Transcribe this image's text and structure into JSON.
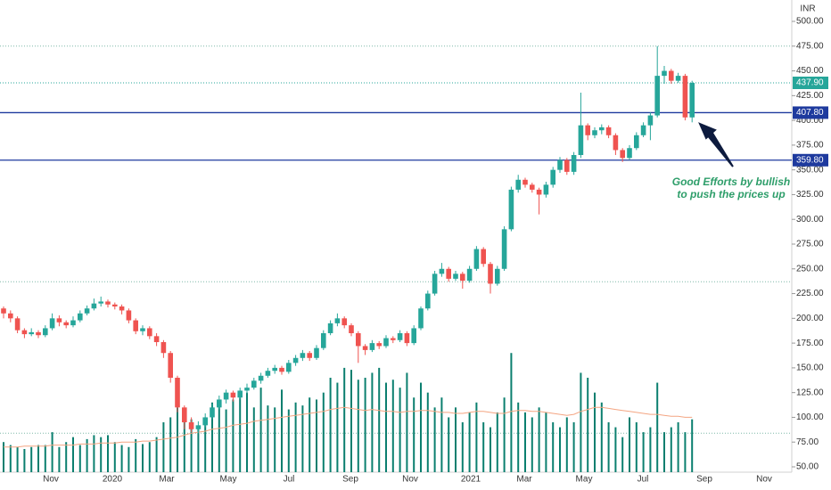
{
  "chart_data": {
    "type": "candlestick",
    "currency": "INR",
    "x_labels": [
      "Nov",
      "2020",
      "Mar",
      "May",
      "Jul",
      "Sep",
      "Nov",
      "2021",
      "Mar",
      "May",
      "Jul",
      "Sep",
      "Nov"
    ],
    "ylim": [
      50,
      500
    ],
    "yticks": [
      {
        "value": 50,
        "label": "50.00"
      },
      {
        "value": 75,
        "label": "75.00"
      },
      {
        "value": 100,
        "label": "100.00"
      },
      {
        "value": 125,
        "label": "125.00"
      },
      {
        "value": 150,
        "label": "150.00"
      },
      {
        "value": 175,
        "label": "175.00"
      },
      {
        "value": 200,
        "label": "200.00"
      },
      {
        "value": 225,
        "label": "225.00"
      },
      {
        "value": 250,
        "label": "250.00"
      },
      {
        "value": 275,
        "label": "275.00"
      },
      {
        "value": 300,
        "label": "300.00"
      },
      {
        "value": 325,
        "label": "325.00"
      },
      {
        "value": 350,
        "label": "350.00"
      },
      {
        "value": 375,
        "label": "375.00"
      },
      {
        "value": 400,
        "label": "400.00"
      },
      {
        "value": 425,
        "label": "425.00"
      },
      {
        "value": 450,
        "label": "450.00"
      },
      {
        "value": 475,
        "label": "475.00"
      },
      {
        "value": 500,
        "label": "500.00"
      }
    ],
    "up_color": "#26a69a",
    "down_color": "#ef5350",
    "open": [
      210,
      205,
      200,
      188,
      184,
      186,
      183,
      190,
      200,
      196,
      193,
      198,
      205,
      210,
      215,
      217,
      214,
      212,
      208,
      198,
      187,
      190,
      182,
      176,
      165,
      140,
      110,
      95,
      88,
      92,
      100,
      110,
      118,
      125,
      120,
      127,
      130,
      137,
      142,
      147,
      150,
      146,
      155,
      160,
      165,
      160,
      170,
      185,
      195,
      200,
      193,
      185,
      172,
      168,
      175,
      172,
      180,
      178,
      185,
      175,
      190,
      210,
      225,
      245,
      250,
      240,
      245,
      238,
      250,
      270,
      255,
      235,
      250,
      290,
      330,
      340,
      335,
      330,
      325,
      335,
      350,
      360,
      348,
      365,
      395,
      385,
      390,
      393,
      385,
      370,
      362,
      372,
      385,
      395,
      405,
      445,
      450,
      440,
      445,
      403
    ],
    "high": [
      212,
      208,
      202,
      190,
      190,
      188,
      193,
      205,
      203,
      198,
      202,
      208,
      213,
      220,
      222,
      219,
      216,
      214,
      210,
      200,
      193,
      192,
      185,
      178,
      167,
      142,
      112,
      100,
      96,
      104,
      114,
      122,
      128,
      127,
      130,
      134,
      140,
      145,
      150,
      153,
      152,
      158,
      163,
      168,
      167,
      173,
      188,
      198,
      205,
      202,
      195,
      187,
      174,
      178,
      177,
      183,
      182,
      188,
      187,
      193,
      212,
      228,
      248,
      256,
      252,
      248,
      247,
      253,
      273,
      272,
      257,
      253,
      293,
      333,
      345,
      342,
      337,
      332,
      338,
      353,
      363,
      362,
      368,
      428,
      397,
      393,
      396,
      395,
      387,
      372,
      375,
      388,
      398,
      408,
      475,
      455,
      452,
      448,
      447,
      440
    ],
    "low": [
      200,
      196,
      185,
      180,
      182,
      180,
      181,
      188,
      192,
      190,
      191,
      196,
      203,
      208,
      212,
      211,
      209,
      204,
      195,
      184,
      183,
      179,
      172,
      160,
      135,
      105,
      88,
      85,
      84,
      90,
      98,
      108,
      114,
      116,
      118,
      124,
      128,
      134,
      140,
      144,
      143,
      144,
      152,
      157,
      157,
      158,
      168,
      183,
      192,
      190,
      182,
      155,
      163,
      166,
      169,
      170,
      175,
      176,
      172,
      173,
      188,
      208,
      223,
      242,
      237,
      238,
      230,
      236,
      248,
      252,
      225,
      233,
      248,
      288,
      327,
      332,
      327,
      305,
      322,
      332,
      347,
      345,
      345,
      362,
      380,
      382,
      386,
      382,
      365,
      358,
      360,
      370,
      383,
      380,
      403,
      437,
      437,
      438,
      400,
      398
    ],
    "close": [
      205,
      200,
      188,
      184,
      186,
      183,
      190,
      200,
      196,
      193,
      198,
      205,
      210,
      215,
      217,
      214,
      212,
      208,
      198,
      187,
      190,
      182,
      176,
      165,
      140,
      110,
      95,
      88,
      92,
      100,
      110,
      118,
      125,
      120,
      127,
      130,
      137,
      142,
      147,
      150,
      146,
      155,
      160,
      165,
      160,
      170,
      185,
      195,
      200,
      193,
      185,
      172,
      168,
      175,
      172,
      180,
      178,
      185,
      175,
      190,
      210,
      225,
      245,
      250,
      240,
      245,
      238,
      250,
      270,
      255,
      235,
      250,
      290,
      330,
      340,
      335,
      330,
      325,
      335,
      350,
      360,
      348,
      365,
      395,
      385,
      390,
      393,
      385,
      370,
      362,
      372,
      385,
      395,
      405,
      445,
      450,
      440,
      445,
      403,
      437.9
    ],
    "volume": [
      75,
      72,
      70,
      68,
      70,
      72,
      72,
      85,
      70,
      75,
      80,
      72,
      78,
      82,
      80,
      82,
      75,
      72,
      70,
      78,
      73,
      75,
      80,
      95,
      100,
      110,
      105,
      98,
      90,
      100,
      115,
      112,
      108,
      118,
      120,
      125,
      110,
      130,
      112,
      110,
      128,
      108,
      115,
      112,
      120,
      118,
      125,
      140,
      135,
      150,
      148,
      138,
      140,
      145,
      150,
      135,
      138,
      130,
      145,
      120,
      135,
      125,
      110,
      120,
      100,
      110,
      95,
      105,
      115,
      95,
      90,
      105,
      120,
      165,
      115,
      105,
      100,
      110,
      105,
      95,
      90,
      100,
      95,
      145,
      140,
      125,
      115,
      95,
      90,
      80,
      100,
      95,
      85,
      90,
      135,
      85,
      90,
      95,
      85,
      98
    ],
    "volume_color": "#0b7f6f",
    "volume_ma": [
      70,
      70,
      70,
      71,
      71,
      71,
      71,
      72,
      72,
      72,
      72,
      73,
      73,
      73,
      74,
      74,
      74,
      75,
      75,
      75,
      76,
      76,
      77,
      78,
      79,
      80,
      82,
      84,
      85,
      86,
      88,
      89,
      90,
      92,
      93,
      94,
      96,
      97,
      98,
      99,
      100,
      101,
      102,
      103,
      104,
      105,
      106,
      108,
      109,
      110,
      109,
      108,
      107,
      108,
      107,
      106,
      106,
      105,
      106,
      106,
      107,
      107,
      106,
      105,
      105,
      104,
      104,
      105,
      106,
      106,
      105,
      104,
      104,
      106,
      107,
      107,
      106,
      106,
      105,
      104,
      103,
      102,
      103,
      106,
      108,
      110,
      110,
      109,
      108,
      107,
      106,
      105,
      104,
      103,
      103,
      102,
      101,
      101,
      100,
      100
    ],
    "volume_ma_color": "#f4a582",
    "levels": [
      {
        "value": 407.8,
        "label": "407.80",
        "color": "#1e3a9e"
      },
      {
        "value": 359.8,
        "label": "359.80",
        "color": "#1e3a9e"
      }
    ],
    "last_price": {
      "value": 437.9,
      "label": "437.90",
      "color": "#26a69a"
    },
    "dotted_levels": [
      475,
      237,
      84
    ],
    "annotation": [
      "Good Efforts by bullish",
      "to push the prices up"
    ]
  }
}
